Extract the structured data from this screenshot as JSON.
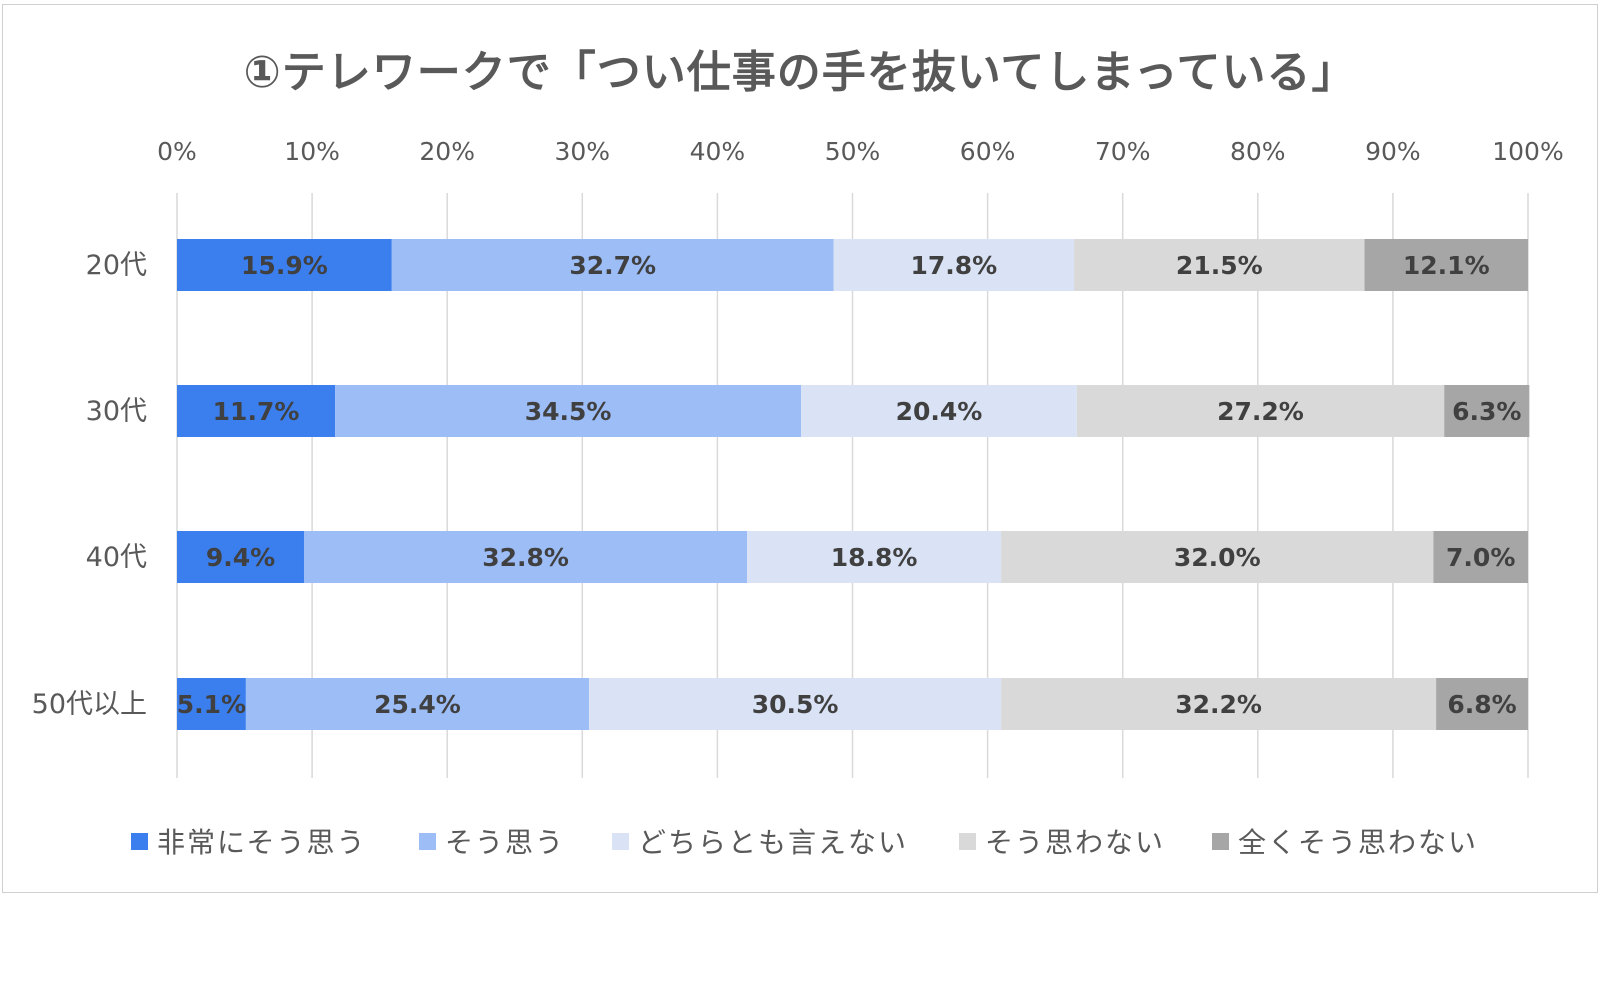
{
  "title": "①テレワークで「つい仕事の手を抜いてしまっている」",
  "chart_data": {
    "type": "bar",
    "orientation": "horizontal",
    "stacked": "percent",
    "title": "①テレワークで「つい仕事の手を抜いてしまっている」",
    "xlim": [
      0,
      100
    ],
    "x_ticks": [
      "0%",
      "10%",
      "20%",
      "30%",
      "40%",
      "50%",
      "60%",
      "70%",
      "80%",
      "90%",
      "100%"
    ],
    "x_tick_position": "top",
    "grid": true,
    "legend_position": "bottom",
    "categories": [
      "20代",
      "30代",
      "40代",
      "50代以上"
    ],
    "series": [
      {
        "name": "非常にそう思う",
        "color": "#3b7fef",
        "values": [
          15.9,
          11.7,
          9.4,
          5.1
        ],
        "labels": [
          "15.9%",
          "11.7%",
          "9.4%",
          "5.1%"
        ]
      },
      {
        "name": "そう思う",
        "color": "#9dbdf7",
        "values": [
          32.7,
          34.5,
          32.8,
          25.4
        ],
        "labels": [
          "32.7%",
          "34.5%",
          "32.8%",
          "25.4%"
        ]
      },
      {
        "name": "どちらとも言えない",
        "color": "#dae3f5",
        "values": [
          17.8,
          20.4,
          18.8,
          30.5
        ],
        "labels": [
          "17.8%",
          "20.4%",
          "18.8%",
          "30.5%"
        ]
      },
      {
        "name": "そう思わない",
        "color": "#d9d9d9",
        "values": [
          21.5,
          27.2,
          32.0,
          32.2
        ],
        "labels": [
          "21.5%",
          "27.2%",
          "32.0%",
          "32.2%"
        ]
      },
      {
        "name": "全くそう思わない",
        "color": "#a6a6a6",
        "values": [
          12.1,
          6.3,
          7.0,
          6.8
        ],
        "labels": [
          "12.1%",
          "6.3%",
          "7.0%",
          "6.8%"
        ]
      }
    ]
  }
}
